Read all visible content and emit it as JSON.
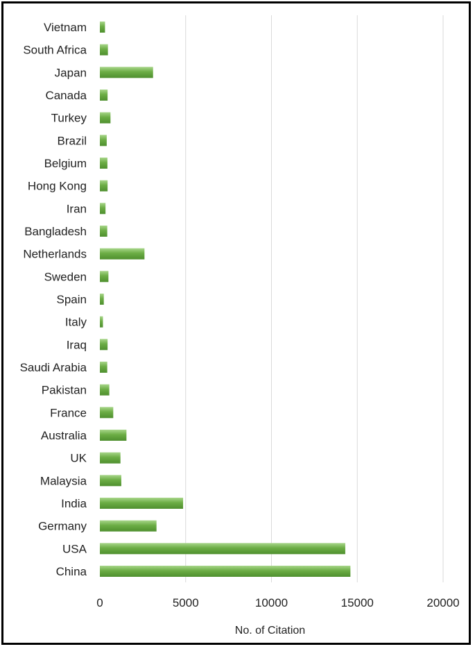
{
  "chart_data": {
    "type": "bar",
    "orientation": "horizontal",
    "categories": [
      "China",
      "USA",
      "Germany",
      "India",
      "Malaysia",
      "UK",
      "Australia",
      "France",
      "Pakistan",
      "Saudi Arabia",
      "Iraq",
      "Italy",
      "Spain",
      "Sweden",
      "Netherlands",
      "Bangladesh",
      "Iran",
      "Hong Kong",
      "Belgium",
      "Brazil",
      "Turkey",
      "Canada",
      "Japan",
      "South Africa",
      "Vietnam"
    ],
    "values": [
      14600,
      14300,
      3300,
      4850,
      1250,
      1200,
      1550,
      780,
      550,
      430,
      450,
      180,
      230,
      500,
      2600,
      430,
      330,
      450,
      440,
      400,
      620,
      450,
      3100,
      470,
      300
    ],
    "title": "",
    "xlabel": "No. of Citation",
    "ylabel": "",
    "xlim": [
      0,
      20000
    ],
    "xticks": [
      0,
      5000,
      10000,
      15000,
      20000
    ],
    "xtick_labels": [
      "0",
      "5000",
      "10000",
      "15000",
      "20000"
    ],
    "grid": true,
    "bar_color": "#6cad45",
    "bar_highlight": "#a8d68a",
    "bar_shadow": "#4e8f2e"
  }
}
